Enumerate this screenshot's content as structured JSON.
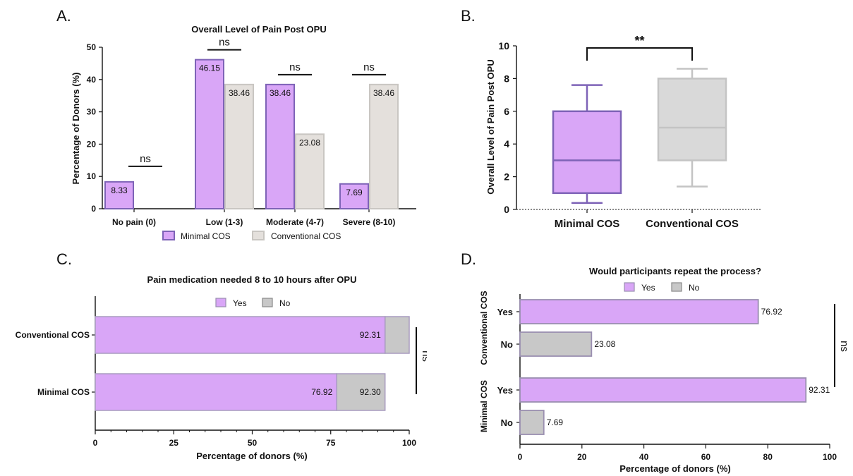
{
  "chart_data": [
    {
      "panel": "A.",
      "type": "bar",
      "title": "Overall Level of Pain Post OPU",
      "ylabel": "Percentage of Donors (%)",
      "xlabel": "",
      "ylim": [
        0,
        50
      ],
      "yticks": [
        "0",
        "10",
        "20",
        "30",
        "40",
        "50"
      ],
      "categories": [
        "No pain (0)",
        "Low  (1-3)",
        "Moderate (4-7)",
        "Severe (8-10)"
      ],
      "series": [
        {
          "name": "Minimal COS",
          "values": [
            8.33,
            46.15,
            38.46,
            7.69
          ],
          "labels": [
            "8.33",
            "46.15",
            "38.46",
            "7.69"
          ],
          "color": "#d9a6f7",
          "stroke": "#7e63b7"
        },
        {
          "name": "Conventional COS",
          "values": [
            0,
            38.46,
            23.08,
            38.46
          ],
          "labels": [
            "",
            "38.46",
            "23.08",
            "38.46"
          ],
          "color": "#e4e0dc",
          "stroke": "#c9c6c2"
        }
      ],
      "annotations": [
        "ns",
        "ns",
        "ns",
        "ns"
      ],
      "legend": "bottom"
    },
    {
      "panel": "B.",
      "type": "box",
      "title": "",
      "ylabel": "Overall Level of Pain Post OPU",
      "ylim": [
        0,
        10
      ],
      "yticks": [
        "0",
        "2",
        "4",
        "6",
        "8",
        "10"
      ],
      "categories": [
        "Minimal COS",
        "Conventional COS"
      ],
      "boxes": [
        {
          "min": 0.4,
          "q1": 1.0,
          "median": 3.0,
          "q3": 6.0,
          "max": 7.6,
          "fill": "#d9a6f7",
          "stroke": "#7e63b7"
        },
        {
          "min": 1.4,
          "q1": 3.0,
          "median": 5.0,
          "q3": 8.0,
          "max": 8.6,
          "fill": "#d9d9d9",
          "stroke": "#c4c4c4"
        }
      ],
      "significance": "**"
    },
    {
      "panel": "C.",
      "type": "bar",
      "orientation": "horizontal-stacked",
      "title": "Pain medication needed 8 to 10 hours after OPU",
      "xlabel": "Percentage of donors (%)",
      "ylabel": "",
      "xlim": [
        0,
        100
      ],
      "xticks": [
        "0",
        "25",
        "50",
        "75",
        "100"
      ],
      "categories": [
        "Conventional COS",
        "Minimal COS"
      ],
      "series": [
        {
          "name": "Yes",
          "values": [
            92.31,
            76.92
          ],
          "labels": [
            "92.31",
            "76.92"
          ],
          "color": "#d9a6f7"
        },
        {
          "name": "No",
          "values": [
            7.69,
            15.38
          ],
          "labels": [
            "",
            "92.30"
          ],
          "color": "#c8c8c8"
        }
      ],
      "annotation": "ns",
      "legend": "top"
    },
    {
      "panel": "D.",
      "type": "bar",
      "orientation": "horizontal",
      "title": "Would participants repeat the process?",
      "xlabel": "Percentage of donors (%)",
      "ylabel": "",
      "xlim": [
        0,
        100
      ],
      "xticks": [
        "0",
        "20",
        "40",
        "60",
        "80",
        "100"
      ],
      "groups": [
        "Conventional COS",
        "Minimal COS"
      ],
      "bars": [
        {
          "group": "Conventional COS",
          "label": "Yes",
          "value": 76.92,
          "text": "76.92",
          "color": "#d9a6f7"
        },
        {
          "group": "Conventional COS",
          "label": "No",
          "value": 23.08,
          "text": "23.08",
          "color": "#c8c8c8"
        },
        {
          "group": "Minimal COS",
          "label": "Yes",
          "value": 92.31,
          "text": "92.31",
          "color": "#d9a6f7"
        },
        {
          "group": "Minimal COS",
          "label": "No",
          "value": 7.69,
          "text": "7.69",
          "color": "#c8c8c8"
        }
      ],
      "legend_items": [
        "Yes",
        "No"
      ],
      "annotation": "ns",
      "legend": "top"
    }
  ]
}
